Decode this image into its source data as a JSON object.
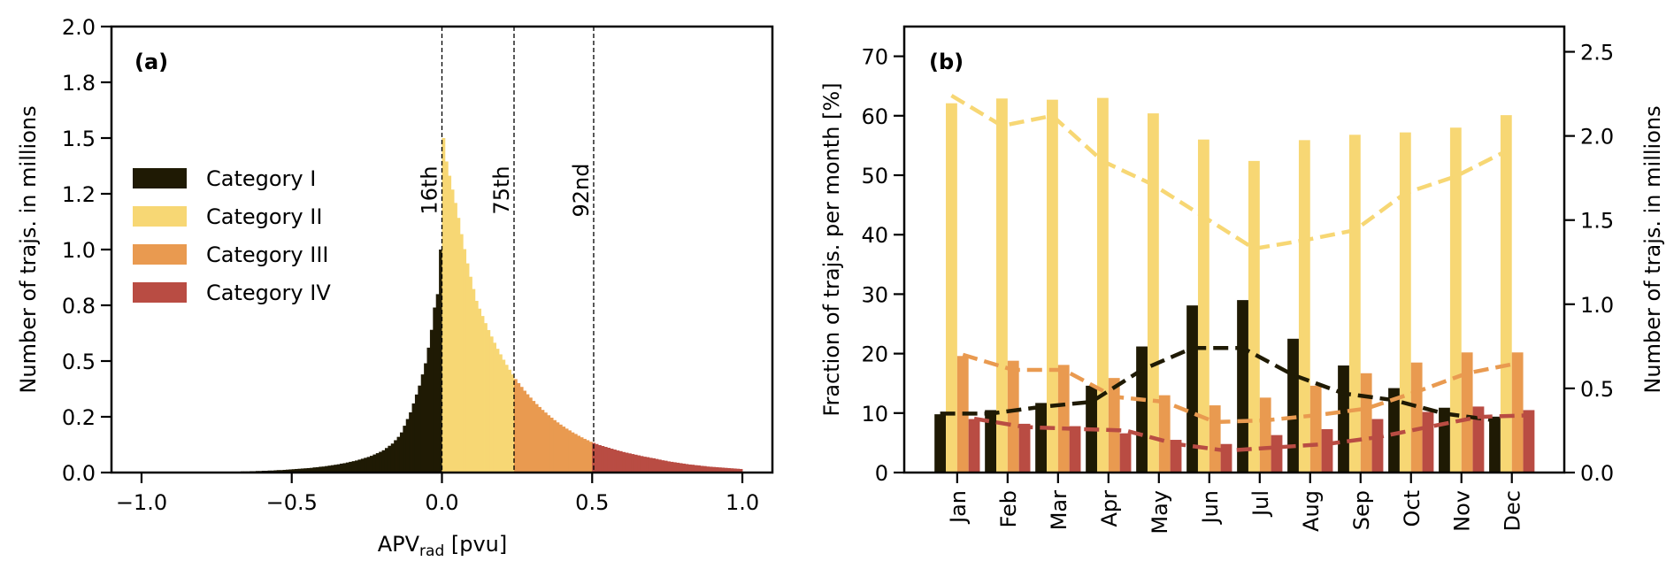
{
  "chart_data": [
    {
      "panel": "(a)",
      "type": "bar",
      "subtype": "histogram",
      "xlabel_main": "APV",
      "xlabel_sub": "rad",
      "xlabel_unit": " [pvu]",
      "ylabel": "Number of trajs. in millions",
      "xlim": [
        -1.1,
        1.1
      ],
      "ylim": [
        0,
        2.0
      ],
      "xticks": [
        -1.0,
        -0.5,
        0.0,
        0.5,
        1.0
      ],
      "xtick_labels": [
        "−1.0",
        "−0.5",
        "0.0",
        "0.5",
        "1.0"
      ],
      "yticks": [
        0.0,
        0.25,
        0.5,
        0.75,
        1.0,
        1.25,
        1.5,
        1.75,
        2.0
      ],
      "ytick_labels": [
        "0.0",
        "0.2",
        "0.5",
        "0.8",
        "1.0",
        "1.2",
        "1.5",
        "1.8",
        "2.0"
      ],
      "bin_width": 0.01,
      "percentile_lines": [
        {
          "label": "16th",
          "x": 0.0
        },
        {
          "label": "75th",
          "x": 0.24
        },
        {
          "label": "92nd",
          "x": 0.505
        }
      ],
      "legend": {
        "placement": "center-left",
        "entries": [
          {
            "label": "Category I",
            "color": "#1f1a04"
          },
          {
            "label": "Category II",
            "color": "#f7d774"
          },
          {
            "label": "Category III",
            "color": "#e99a50"
          },
          {
            "label": "Category IV",
            "color": "#b94c43"
          }
        ]
      },
      "series": [
        {
          "name": "Category I",
          "color": "#1f1a04",
          "bin_start": -0.75,
          "values": [
            0.002,
            0.002,
            0.003,
            0.003,
            0.003,
            0.004,
            0.004,
            0.004,
            0.005,
            0.005,
            0.005,
            0.006,
            0.006,
            0.007,
            0.007,
            0.008,
            0.008,
            0.009,
            0.009,
            0.01,
            0.011,
            0.011,
            0.012,
            0.013,
            0.014,
            0.015,
            0.016,
            0.017,
            0.018,
            0.019,
            0.02,
            0.021,
            0.023,
            0.024,
            0.026,
            0.027,
            0.029,
            0.031,
            0.033,
            0.035,
            0.037,
            0.04,
            0.042,
            0.045,
            0.048,
            0.051,
            0.054,
            0.058,
            0.062,
            0.066,
            0.07,
            0.075,
            0.081,
            0.087,
            0.093,
            0.1,
            0.11,
            0.12,
            0.13,
            0.145,
            0.16,
            0.18,
            0.21,
            0.24,
            0.27,
            0.31,
            0.35,
            0.39,
            0.44,
            0.49,
            0.56,
            0.64,
            0.74,
            0.8,
            1.0
          ]
        },
        {
          "name": "Category II",
          "color": "#f7d774",
          "bin_start": 0.0,
          "values": [
            1.5,
            1.395,
            1.331,
            1.269,
            1.209,
            1.142,
            1.069,
            1.002,
            0.938,
            0.878,
            0.823,
            0.77,
            0.735,
            0.702,
            0.67,
            0.639,
            0.61,
            0.582,
            0.555,
            0.53,
            0.506,
            0.483,
            0.461,
            0.44
          ]
        },
        {
          "name": "Category III",
          "color": "#e99a50",
          "bin_start": 0.24,
          "values": [
            0.419,
            0.401,
            0.384,
            0.367,
            0.351,
            0.336,
            0.321,
            0.307,
            0.294,
            0.281,
            0.269,
            0.257,
            0.246,
            0.235,
            0.225,
            0.215,
            0.206,
            0.197,
            0.189,
            0.18,
            0.173,
            0.165,
            0.158,
            0.151,
            0.145,
            0.138
          ]
        },
        {
          "name": "Category IV",
          "color": "#b94c43",
          "bin_start": 0.5,
          "values": [
            0.133,
            0.128,
            0.123,
            0.119,
            0.115,
            0.111,
            0.107,
            0.103,
            0.099,
            0.096,
            0.092,
            0.089,
            0.086,
            0.083,
            0.08,
            0.077,
            0.074,
            0.071,
            0.069,
            0.066,
            0.064,
            0.061,
            0.058,
            0.055,
            0.053,
            0.05,
            0.048,
            0.046,
            0.044,
            0.042,
            0.04,
            0.038,
            0.036,
            0.035,
            0.033,
            0.032,
            0.03,
            0.029,
            0.027,
            0.026,
            0.025,
            0.024,
            0.023,
            0.022,
            0.021,
            0.02,
            0.019,
            0.018,
            0.017,
            0.016
          ]
        }
      ]
    },
    {
      "panel": "(b)",
      "type": "bar",
      "subtype": "grouped bar + dashed lines (twin y-axes)",
      "ylabel": "Fraction of trajs. per month [%]",
      "ylabel_right": "Number of trajs. in millions",
      "ylim": [
        0,
        75
      ],
      "ylim_right": [
        0,
        2.65
      ],
      "yticks": [
        0,
        10,
        20,
        30,
        40,
        50,
        60,
        70
      ],
      "ytick_labels": [
        "0",
        "10",
        "20",
        "30",
        "40",
        "50",
        "60",
        "70"
      ],
      "yticks_right": [
        0.0,
        0.5,
        1.0,
        1.5,
        2.0,
        2.5
      ],
      "ytick_labels_right": [
        "0.0",
        "0.5",
        "1.0",
        "1.5",
        "2.0",
        "2.5"
      ],
      "categories": [
        "Jan",
        "Feb",
        "Mar",
        "Apr",
        "May",
        "Jun",
        "Jul",
        "Aug",
        "Sep",
        "Oct",
        "Nov",
        "Dec"
      ],
      "series": [
        {
          "name": "Category I",
          "color": "#1f1a04",
          "axis": "left",
          "kind": "bar",
          "values": [
            9.8,
            10.5,
            11.7,
            14.6,
            21.2,
            28.1,
            29.0,
            22.5,
            18.0,
            14.2,
            10.9,
            9.4
          ]
        },
        {
          "name": "Category II",
          "color": "#f7d774",
          "axis": "left",
          "kind": "bar",
          "values": [
            62.1,
            62.9,
            62.7,
            63.0,
            60.4,
            56.0,
            52.4,
            55.9,
            56.8,
            57.2,
            58.0,
            60.1
          ]
        },
        {
          "name": "Category III",
          "color": "#e99a50",
          "axis": "left",
          "kind": "bar",
          "values": [
            19.6,
            18.8,
            18.1,
            15.9,
            13.0,
            11.3,
            12.6,
            14.6,
            16.7,
            18.5,
            20.2,
            20.2
          ]
        },
        {
          "name": "Category IV",
          "color": "#b94c43",
          "axis": "left",
          "kind": "bar",
          "values": [
            9.0,
            8.2,
            7.8,
            6.6,
            5.5,
            4.8,
            6.3,
            7.3,
            9.0,
            10.2,
            11.1,
            10.5
          ]
        }
      ],
      "line_series": [
        {
          "name": "Category I (count)",
          "color": "#1f1a04",
          "axis": "right",
          "kind": "dashed-line",
          "values": [
            0.35,
            0.35,
            0.39,
            0.42,
            0.61,
            0.74,
            0.74,
            0.58,
            0.47,
            0.43,
            0.35,
            0.31
          ]
        },
        {
          "name": "Category II (count)",
          "color": "#f7d774",
          "axis": "right",
          "kind": "dashed-line",
          "values": [
            2.24,
            2.06,
            2.12,
            1.85,
            1.71,
            1.52,
            1.33,
            1.38,
            1.44,
            1.66,
            1.76,
            1.91
          ]
        },
        {
          "name": "Category III (count)",
          "color": "#e99a50",
          "axis": "right",
          "kind": "dashed-line",
          "values": [
            0.7,
            0.61,
            0.61,
            0.45,
            0.42,
            0.3,
            0.31,
            0.34,
            0.38,
            0.48,
            0.59,
            0.65
          ]
        },
        {
          "name": "Category IV (count)",
          "color": "#b94c43",
          "axis": "right",
          "kind": "dashed-line",
          "values": [
            0.32,
            0.27,
            0.26,
            0.25,
            0.17,
            0.13,
            0.15,
            0.17,
            0.21,
            0.27,
            0.33,
            0.34
          ]
        }
      ]
    }
  ]
}
